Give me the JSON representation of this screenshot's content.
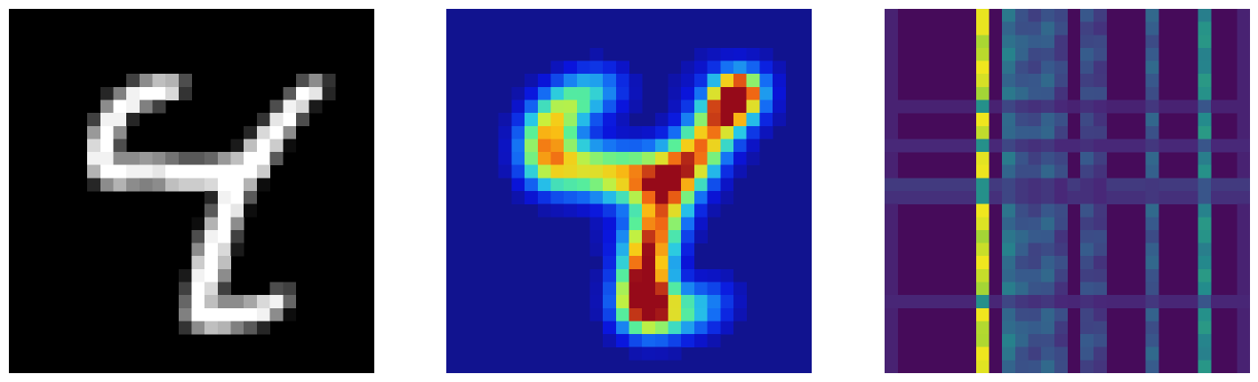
{
  "panels": [
    {
      "key": "digit",
      "kind": "grayscale-image",
      "grid": 28
    },
    {
      "key": "heat",
      "kind": "heatmap-overlay",
      "grid": 28,
      "colormap": "jet"
    },
    {
      "key": "attn",
      "kind": "matrix",
      "grid": 28,
      "colormap": "viridis"
    }
  ],
  "digit_pixels": [
    [
      0,
      0,
      0,
      0,
      0,
      0,
      0,
      0,
      0,
      0,
      0,
      0,
      0,
      0,
      0,
      0,
      0,
      0,
      0,
      0,
      0,
      0,
      0,
      0,
      0,
      0,
      0,
      0
    ],
    [
      0,
      0,
      0,
      0,
      0,
      0,
      0,
      0,
      0,
      0,
      0,
      0,
      0,
      0,
      0,
      0,
      0,
      0,
      0,
      0,
      0,
      0,
      0,
      0,
      0,
      0,
      0,
      0
    ],
    [
      0,
      0,
      0,
      0,
      0,
      0,
      0,
      0,
      0,
      0,
      0,
      0,
      0,
      0,
      0,
      0,
      0,
      0,
      0,
      0,
      0,
      0,
      0,
      0,
      0,
      0,
      0,
      0
    ],
    [
      0,
      0,
      0,
      0,
      0,
      0,
      0,
      0,
      0,
      0,
      0,
      0,
      0,
      0,
      0,
      0,
      0,
      0,
      0,
      0,
      0,
      0,
      0,
      0,
      0,
      0,
      0,
      0
    ],
    [
      0,
      0,
      0,
      0,
      0,
      0,
      0,
      0,
      0,
      0,
      0,
      0,
      0,
      0,
      0,
      0,
      0,
      0,
      0,
      0,
      0,
      0,
      0,
      0,
      0,
      0,
      0,
      0
    ],
    [
      0,
      0,
      0,
      0,
      0,
      0,
      0,
      0,
      0,
      0.25,
      0.55,
      0.75,
      0.7,
      0.3,
      0,
      0,
      0,
      0,
      0,
      0,
      0,
      0,
      0.3,
      0.55,
      0.2,
      0,
      0,
      0
    ],
    [
      0,
      0,
      0,
      0,
      0,
      0,
      0,
      0.15,
      0.5,
      0.95,
      1,
      1,
      0.85,
      0.2,
      0,
      0,
      0,
      0,
      0,
      0,
      0,
      0.35,
      1,
      0.9,
      0.15,
      0,
      0,
      0
    ],
    [
      0,
      0,
      0,
      0,
      0,
      0,
      0,
      0.55,
      1,
      0.95,
      0.5,
      0.25,
      0,
      0,
      0,
      0,
      0,
      0,
      0,
      0,
      0.3,
      0.95,
      0.85,
      0.1,
      0,
      0,
      0,
      0
    ],
    [
      0,
      0,
      0,
      0,
      0,
      0,
      0.25,
      0.95,
      0.95,
      0.15,
      0,
      0,
      0,
      0,
      0,
      0,
      0,
      0,
      0,
      0.2,
      0.9,
      1,
      0.3,
      0,
      0,
      0,
      0,
      0
    ],
    [
      0,
      0,
      0,
      0,
      0,
      0,
      0.6,
      1,
      0.55,
      0,
      0,
      0,
      0,
      0,
      0,
      0,
      0,
      0,
      0.15,
      0.85,
      1,
      0.55,
      0,
      0,
      0,
      0,
      0,
      0
    ],
    [
      0,
      0,
      0,
      0,
      0,
      0,
      0.85,
      1,
      0.3,
      0,
      0,
      0,
      0,
      0,
      0,
      0,
      0,
      0.1,
      0.75,
      1,
      0.8,
      0.05,
      0,
      0,
      0,
      0,
      0,
      0
    ],
    [
      0,
      0,
      0,
      0,
      0,
      0,
      0.95,
      0.95,
      0.55,
      0.55,
      0.6,
      0.55,
      0.45,
      0.35,
      0.35,
      0.4,
      0.6,
      0.75,
      1,
      1,
      0.35,
      0,
      0,
      0,
      0,
      0,
      0,
      0
    ],
    [
      0,
      0,
      0,
      0,
      0,
      0,
      0.7,
      1,
      1,
      0.95,
      0.95,
      0.9,
      1,
      1,
      1,
      1,
      1,
      1,
      1,
      0.8,
      0,
      0,
      0,
      0,
      0,
      0,
      0,
      0
    ],
    [
      0,
      0,
      0,
      0,
      0,
      0,
      0.15,
      0.55,
      0.7,
      0.55,
      0.5,
      0.55,
      0.75,
      0.8,
      0.8,
      0.85,
      1,
      1,
      0.7,
      0.05,
      0,
      0,
      0,
      0,
      0,
      0,
      0,
      0
    ],
    [
      0,
      0,
      0,
      0,
      0,
      0,
      0,
      0,
      0,
      0,
      0,
      0,
      0,
      0,
      0,
      0.15,
      0.95,
      1,
      0.35,
      0,
      0,
      0,
      0,
      0,
      0,
      0,
      0,
      0
    ],
    [
      0,
      0,
      0,
      0,
      0,
      0,
      0,
      0,
      0,
      0,
      0,
      0,
      0,
      0,
      0,
      0.35,
      1,
      0.9,
      0.05,
      0,
      0,
      0,
      0,
      0,
      0,
      0,
      0,
      0
    ],
    [
      0,
      0,
      0,
      0,
      0,
      0,
      0,
      0,
      0,
      0,
      0,
      0,
      0,
      0,
      0.05,
      0.7,
      1,
      0.55,
      0,
      0,
      0,
      0,
      0,
      0,
      0,
      0,
      0,
      0
    ],
    [
      0,
      0,
      0,
      0,
      0,
      0,
      0,
      0,
      0,
      0,
      0,
      0,
      0,
      0,
      0.3,
      0.95,
      1,
      0.25,
      0,
      0,
      0,
      0,
      0,
      0,
      0,
      0,
      0,
      0
    ],
    [
      0,
      0,
      0,
      0,
      0,
      0,
      0,
      0,
      0,
      0,
      0,
      0,
      0,
      0,
      0.55,
      1,
      0.85,
      0.1,
      0,
      0,
      0,
      0,
      0,
      0,
      0,
      0,
      0,
      0
    ],
    [
      0,
      0,
      0,
      0,
      0,
      0,
      0,
      0,
      0,
      0,
      0,
      0,
      0,
      0,
      0.8,
      1,
      0.75,
      0,
      0,
      0,
      0,
      0,
      0,
      0,
      0,
      0,
      0,
      0
    ],
    [
      0,
      0,
      0,
      0,
      0,
      0,
      0,
      0,
      0,
      0,
      0,
      0,
      0,
      0.1,
      0.95,
      1,
      0.55,
      0,
      0,
      0,
      0,
      0,
      0,
      0,
      0,
      0,
      0,
      0
    ],
    [
      0,
      0,
      0,
      0,
      0,
      0,
      0,
      0,
      0,
      0,
      0,
      0,
      0,
      0.25,
      1,
      0.85,
      0.25,
      0,
      0,
      0,
      0.3,
      0.25,
      0,
      0,
      0,
      0,
      0,
      0
    ],
    [
      0,
      0,
      0,
      0,
      0,
      0,
      0,
      0,
      0,
      0,
      0,
      0,
      0,
      0.4,
      1,
      0.75,
      0.55,
      0.55,
      0.65,
      0.85,
      0.95,
      0.4,
      0,
      0,
      0,
      0,
      0,
      0
    ],
    [
      0,
      0,
      0,
      0,
      0,
      0,
      0,
      0,
      0,
      0,
      0,
      0,
      0,
      0.5,
      1,
      1,
      1,
      1,
      1,
      0.95,
      0.55,
      0.05,
      0,
      0,
      0,
      0,
      0,
      0
    ],
    [
      0,
      0,
      0,
      0,
      0,
      0,
      0,
      0,
      0,
      0,
      0,
      0,
      0,
      0.2,
      0.55,
      0.75,
      0.7,
      0.5,
      0.35,
      0.15,
      0,
      0,
      0,
      0,
      0,
      0,
      0,
      0
    ],
    [
      0,
      0,
      0,
      0,
      0,
      0,
      0,
      0,
      0,
      0,
      0,
      0,
      0,
      0,
      0,
      0,
      0,
      0,
      0,
      0,
      0,
      0,
      0,
      0,
      0,
      0,
      0,
      0
    ],
    [
      0,
      0,
      0,
      0,
      0,
      0,
      0,
      0,
      0,
      0,
      0,
      0,
      0,
      0,
      0,
      0,
      0,
      0,
      0,
      0,
      0,
      0,
      0,
      0,
      0,
      0,
      0,
      0
    ],
    [
      0,
      0,
      0,
      0,
      0,
      0,
      0,
      0,
      0,
      0,
      0,
      0,
      0,
      0,
      0,
      0,
      0,
      0,
      0,
      0,
      0,
      0,
      0,
      0,
      0,
      0,
      0,
      0
    ]
  ],
  "heat_blobs": [
    {
      "r": 6.0,
      "c": 21.5,
      "amp": 1.0,
      "sigma": 1.2
    },
    {
      "r": 6.5,
      "c": 21.0,
      "amp": 0.55,
      "sigma": 2.4
    },
    {
      "r": 21.8,
      "c": 14.8,
      "amp": 0.72,
      "sigma": 1.8
    },
    {
      "r": 9.5,
      "c": 8.5,
      "amp": 0.45,
      "sigma": 2.3
    },
    {
      "r": 13.5,
      "c": 14.0,
      "amp": 0.38,
      "sigma": 2.6
    },
    {
      "r": 11.5,
      "c": 18.5,
      "amp": 0.3,
      "sigma": 2.2
    },
    {
      "r": 17.5,
      "c": 14.6,
      "amp": 0.35,
      "sigma": 2.0
    }
  ],
  "attn_columns": [
    {
      "col": 7,
      "value": 0.95
    },
    {
      "col": 9,
      "value": 0.45
    },
    {
      "col": 10,
      "value": 0.35
    },
    {
      "col": 11,
      "value": 0.3
    },
    {
      "col": 12,
      "value": 0.35
    },
    {
      "col": 13,
      "value": 0.25
    },
    {
      "col": 15,
      "value": 0.3
    },
    {
      "col": 16,
      "value": 0.25
    },
    {
      "col": 20,
      "value": 0.35
    },
    {
      "col": 24,
      "value": 0.55
    }
  ],
  "attn_rows": [
    {
      "row": 7,
      "value": 0.12
    },
    {
      "row": 10,
      "value": 0.15
    },
    {
      "row": 13,
      "value": 0.22
    },
    {
      "row": 14,
      "value": 0.18
    },
    {
      "row": 22,
      "value": 0.14
    }
  ],
  "colors": {
    "digit_background": "#000000",
    "heat_background": "#11138f",
    "attn_background": "#460b5a",
    "page_background": "#ffffff"
  }
}
